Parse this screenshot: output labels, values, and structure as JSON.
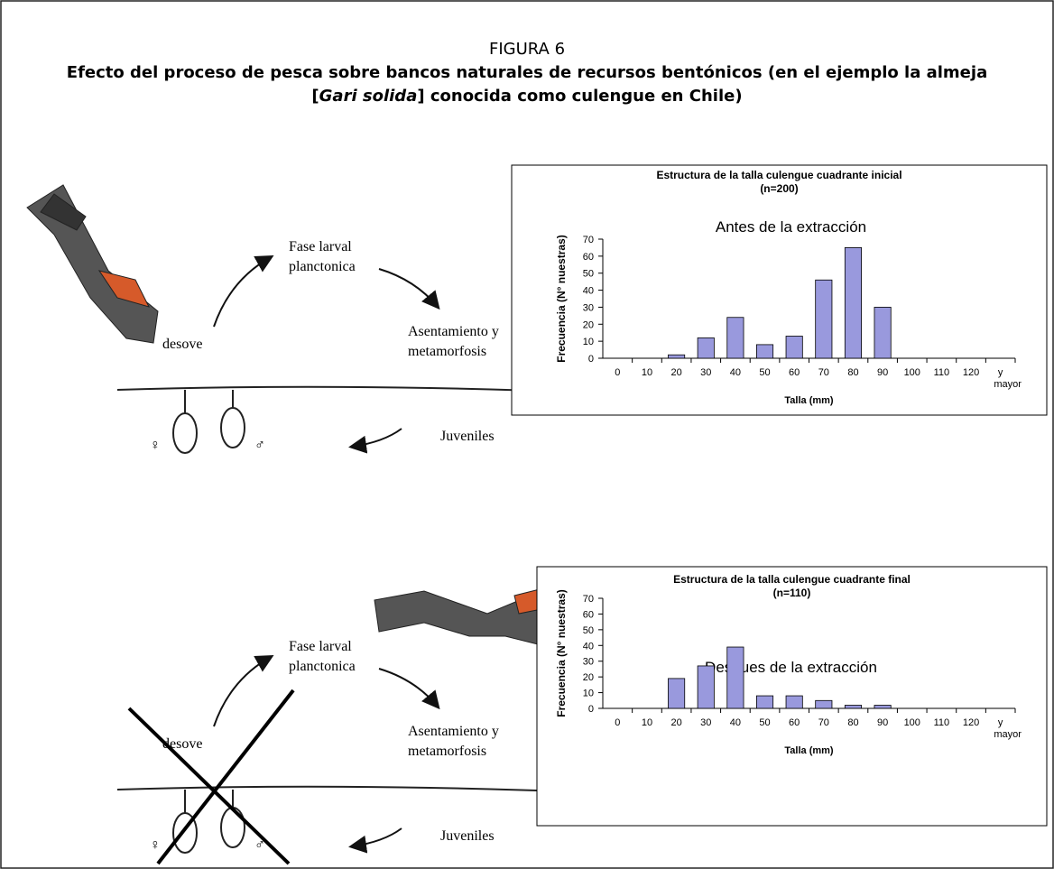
{
  "figure": {
    "label": "FIGURA 6",
    "title_line1": "Efecto del proceso de pesca sobre bancos naturales de recursos bentónicos (en el ejemplo la almeja",
    "title_line2": [
      "[",
      "Gari solida",
      "] conocida como culengue en Chile)"
    ]
  },
  "diagrams": [
    {
      "larval": [
        "Fase larval",
        "planctonica"
      ],
      "settlement": [
        "Asentamiento y",
        "metamorfosis"
      ],
      "spawning": "desove",
      "juveniles": "Juveniles",
      "female": "♀",
      "male": "♂"
    },
    {
      "larval": [
        "Fase larval",
        "planctonica"
      ],
      "settlement": [
        "Asentamiento y",
        "metamorfosis"
      ],
      "spawning": "desove",
      "juveniles": "Juveniles",
      "female": "♀",
      "male": "♂"
    }
  ],
  "chart_data": [
    {
      "type": "bar",
      "title": "Estructura de la talla culengue cuadrante inicial",
      "subtitle": "(n=200)",
      "annotation": "Antes de la extracción",
      "x_label": "Talla (mm)",
      "y_label": "Frecuencia (N° nuestras)",
      "categories": [
        "0",
        "10",
        "20",
        "30",
        "40",
        "50",
        "60",
        "70",
        "80",
        "90",
        "100",
        "110",
        "120",
        "y mayor"
      ],
      "values": [
        0,
        0,
        2,
        12,
        24,
        8,
        13,
        46,
        65,
        30,
        0,
        0,
        0,
        0
      ],
      "color": "#9999dd",
      "ylim": [
        0,
        70
      ],
      "yticks": [
        0,
        10,
        20,
        30,
        40,
        50,
        60,
        70
      ]
    },
    {
      "type": "bar",
      "title": "Estructura de la talla culengue cuadrante final",
      "subtitle": "(n=110)",
      "annotation": "Despues de la extracción",
      "x_label": "Talla (mm)",
      "y_label": "Frecuencia (N° nuestras)",
      "categories": [
        "0",
        "10",
        "20",
        "30",
        "40",
        "50",
        "60",
        "70",
        "80",
        "90",
        "100",
        "110",
        "120",
        "y mayor"
      ],
      "values": [
        0,
        0,
        19,
        27,
        39,
        8,
        8,
        5,
        2,
        2,
        0,
        0,
        0,
        0
      ],
      "color": "#9999dd",
      "ylim": [
        0,
        70
      ],
      "yticks": [
        0,
        10,
        20,
        30,
        40,
        50,
        60,
        70
      ]
    }
  ]
}
